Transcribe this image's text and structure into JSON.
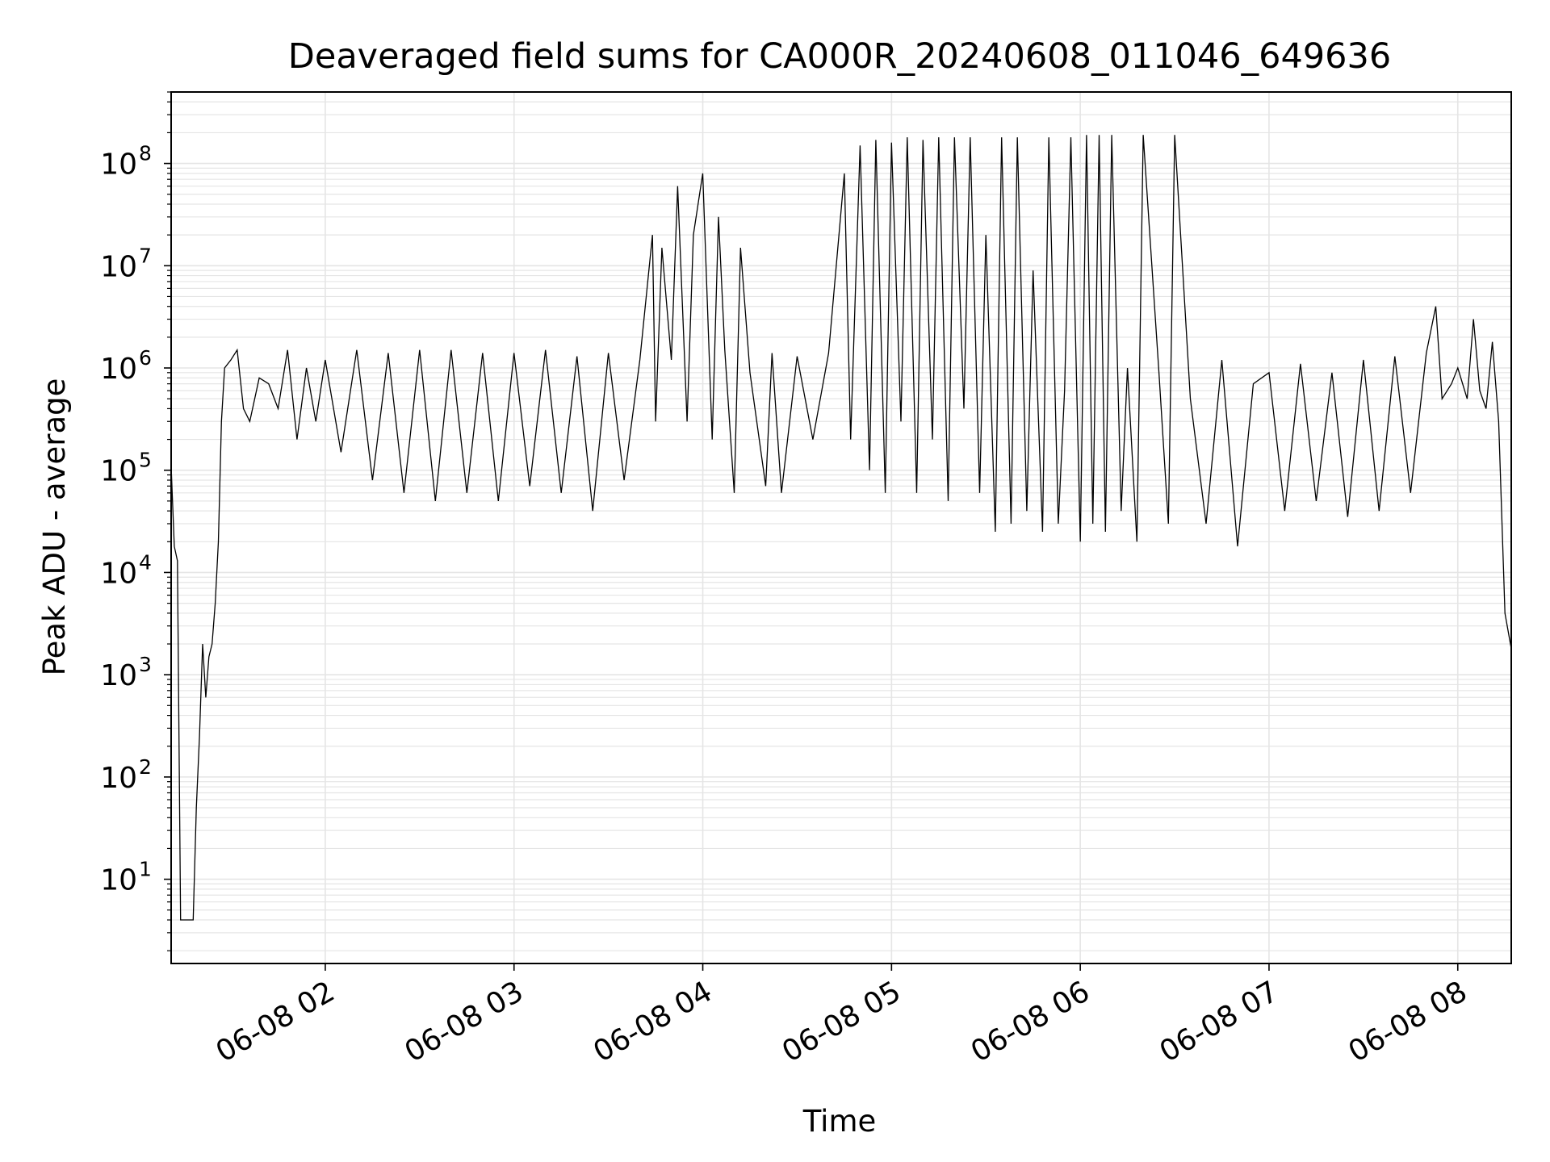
{
  "chart_data": {
    "type": "line",
    "title": "Deaveraged field sums for CA000R_20240608_011046_649636",
    "xlabel": "Time",
    "ylabel": "Peak ADU - average",
    "yscale": "log",
    "grid": true,
    "legend": "none",
    "colors": {
      "line": "#000000",
      "grid": "#e5e5e5",
      "axes": "#000000"
    },
    "xlim": [
      "2024-06-08 01:11",
      "2024-06-08 08:17"
    ],
    "ylim": [
      1.5,
      500000000
    ],
    "x_ticks": [
      {
        "t": "2024-06-08 02:00",
        "label": "06-08 02"
      },
      {
        "t": "2024-06-08 03:00",
        "label": "06-08 03"
      },
      {
        "t": "2024-06-08 04:00",
        "label": "06-08 04"
      },
      {
        "t": "2024-06-08 05:00",
        "label": "06-08 05"
      },
      {
        "t": "2024-06-08 06:00",
        "label": "06-08 06"
      },
      {
        "t": "2024-06-08 07:00",
        "label": "06-08 07"
      },
      {
        "t": "2024-06-08 08:00",
        "label": "06-08 08"
      }
    ],
    "y_ticks": [
      {
        "value": 10,
        "base": "10",
        "exp": "1"
      },
      {
        "value": 100,
        "base": "10",
        "exp": "2"
      },
      {
        "value": 1000,
        "base": "10",
        "exp": "3"
      },
      {
        "value": 10000,
        "base": "10",
        "exp": "4"
      },
      {
        "value": 100000,
        "base": "10",
        "exp": "5"
      },
      {
        "value": 1000000,
        "base": "10",
        "exp": "6"
      },
      {
        "value": 10000000,
        "base": "10",
        "exp": "7"
      },
      {
        "value": 100000000,
        "base": "10",
        "exp": "8"
      }
    ],
    "series": [
      {
        "x": [
          "2024-06-08 01:11",
          "2024-06-08 01:12",
          "2024-06-08 01:13",
          "2024-06-08 01:14",
          "2024-06-08 01:15",
          "2024-06-08 01:16",
          "2024-06-08 01:17",
          "2024-06-08 01:18",
          "2024-06-08 01:19",
          "2024-06-08 01:20",
          "2024-06-08 01:21",
          "2024-06-08 01:22",
          "2024-06-08 01:23",
          "2024-06-08 01:24",
          "2024-06-08 01:25",
          "2024-06-08 01:26",
          "2024-06-08 01:27",
          "2024-06-08 01:28",
          "2024-06-08 01:30",
          "2024-06-08 01:32",
          "2024-06-08 01:34",
          "2024-06-08 01:36",
          "2024-06-08 01:39",
          "2024-06-08 01:42",
          "2024-06-08 01:45",
          "2024-06-08 01:48",
          "2024-06-08 01:51",
          "2024-06-08 01:54",
          "2024-06-08 01:57",
          "2024-06-08 02:00",
          "2024-06-08 02:05",
          "2024-06-08 02:10",
          "2024-06-08 02:15",
          "2024-06-08 02:20",
          "2024-06-08 02:25",
          "2024-06-08 02:30",
          "2024-06-08 02:35",
          "2024-06-08 02:40",
          "2024-06-08 02:45",
          "2024-06-08 02:50",
          "2024-06-08 02:55",
          "2024-06-08 03:00",
          "2024-06-08 03:05",
          "2024-06-08 03:10",
          "2024-06-08 03:15",
          "2024-06-08 03:20",
          "2024-06-08 03:25",
          "2024-06-08 03:30",
          "2024-06-08 03:35",
          "2024-06-08 03:40",
          "2024-06-08 03:44",
          "2024-06-08 03:45",
          "2024-06-08 03:47",
          "2024-06-08 03:50",
          "2024-06-08 03:52",
          "2024-06-08 03:55",
          "2024-06-08 03:57",
          "2024-06-08 04:00",
          "2024-06-08 04:03",
          "2024-06-08 04:05",
          "2024-06-08 04:07",
          "2024-06-08 04:10",
          "2024-06-08 04:12",
          "2024-06-08 04:15",
          "2024-06-08 04:20",
          "2024-06-08 04:22",
          "2024-06-08 04:25",
          "2024-06-08 04:30",
          "2024-06-08 04:35",
          "2024-06-08 04:40",
          "2024-06-08 04:45",
          "2024-06-08 04:47",
          "2024-06-08 04:50",
          "2024-06-08 04:53",
          "2024-06-08 04:55",
          "2024-06-08 04:58",
          "2024-06-08 05:00",
          "2024-06-08 05:03",
          "2024-06-08 05:05",
          "2024-06-08 05:08",
          "2024-06-08 05:10",
          "2024-06-08 05:13",
          "2024-06-08 05:15",
          "2024-06-08 05:18",
          "2024-06-08 05:20",
          "2024-06-08 05:23",
          "2024-06-08 05:25",
          "2024-06-08 05:28",
          "2024-06-08 05:30",
          "2024-06-08 05:33",
          "2024-06-08 05:35",
          "2024-06-08 05:38",
          "2024-06-08 05:40",
          "2024-06-08 05:43",
          "2024-06-08 05:45",
          "2024-06-08 05:48",
          "2024-06-08 05:50",
          "2024-06-08 05:53",
          "2024-06-08 05:55",
          "2024-06-08 05:57",
          "2024-06-08 06:00",
          "2024-06-08 06:02",
          "2024-06-08 06:04",
          "2024-06-08 06:06",
          "2024-06-08 06:08",
          "2024-06-08 06:10",
          "2024-06-08 06:13",
          "2024-06-08 06:15",
          "2024-06-08 06:18",
          "2024-06-08 06:20",
          "2024-06-08 06:25",
          "2024-06-08 06:28",
          "2024-06-08 06:30",
          "2024-06-08 06:35",
          "2024-06-08 06:40",
          "2024-06-08 06:45",
          "2024-06-08 06:50",
          "2024-06-08 06:55",
          "2024-06-08 07:00",
          "2024-06-08 07:05",
          "2024-06-08 07:10",
          "2024-06-08 07:15",
          "2024-06-08 07:20",
          "2024-06-08 07:25",
          "2024-06-08 07:30",
          "2024-06-08 07:35",
          "2024-06-08 07:40",
          "2024-06-08 07:45",
          "2024-06-08 07:50",
          "2024-06-08 07:53",
          "2024-06-08 07:55",
          "2024-06-08 07:58",
          "2024-06-08 08:00",
          "2024-06-08 08:03",
          "2024-06-08 08:05",
          "2024-06-08 08:07",
          "2024-06-08 08:09",
          "2024-06-08 08:11",
          "2024-06-08 08:13",
          "2024-06-08 08:15",
          "2024-06-08 08:17"
        ],
        "y": [
          110000,
          18000,
          13000,
          4,
          4,
          4,
          4,
          4,
          50,
          250,
          2000,
          600,
          1500,
          2000,
          5000,
          20000,
          300000,
          1000000,
          1200000,
          1500000,
          400000,
          300000,
          800000,
          700000,
          400000,
          1500000,
          200000,
          1000000,
          300000,
          1200000,
          150000,
          1500000,
          80000,
          1400000,
          60000,
          1500000,
          50000,
          1500000,
          60000,
          1400000,
          50000,
          1400000,
          70000,
          1500000,
          60000,
          1300000,
          40000,
          1400000,
          80000,
          1200000,
          20000000,
          300000,
          15000000,
          1200000,
          60000000,
          300000,
          20000000,
          80000000,
          200000,
          30000000,
          1500000,
          60000,
          15000000,
          900000,
          70000,
          1400000,
          60000,
          1300000,
          200000,
          1400000,
          80000000,
          200000,
          150000000,
          100000,
          170000000,
          60000,
          160000000,
          300000,
          180000000,
          60000,
          170000000,
          200000,
          180000000,
          50000,
          180000000,
          400000,
          180000000,
          60000,
          20000000,
          25000,
          180000000,
          30000,
          180000000,
          40000,
          9000000,
          25000,
          180000000,
          30000,
          600000,
          180000000,
          20000,
          190000000,
          30000,
          190000000,
          25000,
          190000000,
          40000,
          1000000,
          20000,
          190000000,
          900000,
          30000,
          190000000,
          500000,
          30000,
          1200000,
          18000,
          700000,
          900000,
          40000,
          1100000,
          50000,
          900000,
          35000,
          1200000,
          40000,
          1300000,
          60000,
          1400000,
          4000000,
          500000,
          700000,
          1000000,
          500000,
          3000000,
          600000,
          400000,
          1800000,
          300000,
          4000,
          1800
        ]
      }
    ]
  }
}
